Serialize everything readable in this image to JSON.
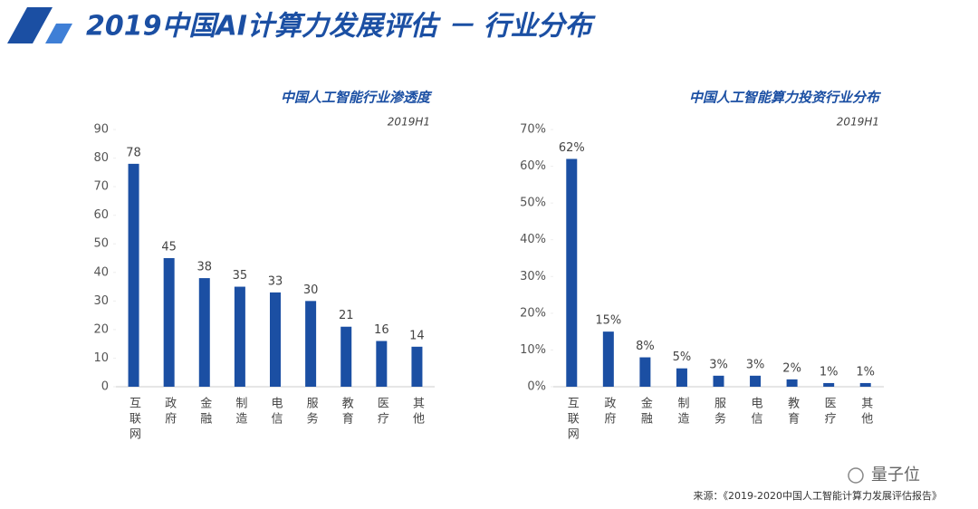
{
  "title": "2019中国AI计算力发展评估 － 行业分布",
  "source": "来源：《2019-2020中国人工智能计算力发展评估报告》",
  "watermark": "量子位",
  "chart_data": [
    {
      "type": "bar",
      "title": "中国人工智能行业渗透度",
      "subtitle": "2019H1",
      "categories": [
        "互联网",
        "政府",
        "金融",
        "制造",
        "电信",
        "服务",
        "教育",
        "医疗",
        "其他"
      ],
      "values": [
        78,
        45,
        38,
        35,
        33,
        30,
        21,
        16,
        14
      ],
      "color": "#1b4fa3",
      "ylim": [
        0,
        90
      ],
      "yticks": [
        0,
        10,
        20,
        30,
        40,
        50,
        60,
        70,
        80,
        90
      ]
    },
    {
      "type": "bar",
      "title": "中国人工智能算力投资行业分布",
      "subtitle": "2019H1",
      "categories": [
        "互联网",
        "政府",
        "金融",
        "制造",
        "服务",
        "电信",
        "教育",
        "医疗",
        "其他"
      ],
      "values": [
        62,
        15,
        8,
        5,
        3,
        3,
        2,
        1,
        1
      ],
      "value_labels": [
        "62%",
        "15%",
        "8%",
        "5%",
        "3%",
        "3%",
        "2%",
        "1%",
        "1%"
      ],
      "color": "#1b4fa3",
      "ylim": [
        0,
        70
      ],
      "yticks": [
        {
          "value": 0,
          "label": "0%"
        },
        {
          "value": 10,
          "label": "10%"
        },
        {
          "value": 20,
          "label": "20%"
        },
        {
          "value": 30,
          "label": "30%"
        },
        {
          "value": 40,
          "label": "40%"
        },
        {
          "value": 50,
          "label": "50%"
        },
        {
          "value": 60,
          "label": "60%"
        },
        {
          "value": 70,
          "label": "70%"
        }
      ]
    }
  ]
}
